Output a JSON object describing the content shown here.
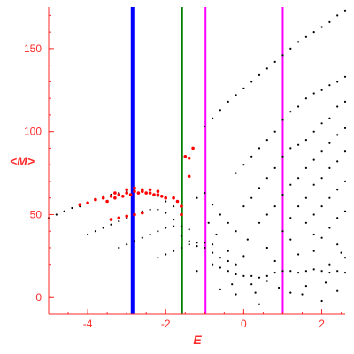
{
  "chart_data": {
    "type": "scatter",
    "xlabel": "E",
    "ylabel": "<M>",
    "xlim": [
      -5,
      2.6
    ],
    "ylim": [
      -10,
      175
    ],
    "x_ticks": [
      -4,
      -2,
      0,
      2
    ],
    "y_ticks": [
      0,
      50,
      100,
      150
    ],
    "x_tick_labels": [
      "-4",
      "-2",
      "0",
      "2"
    ],
    "y_tick_labels": [
      "0",
      "50",
      "100",
      "150"
    ],
    "grid": false,
    "legend": "none",
    "colors": {
      "axis": "#ff2a2a",
      "black_points": "#000000",
      "red_points": "#ff0000",
      "blue_line": "#0000ff",
      "green_line": "#008000",
      "magenta_line": "#ff00ff"
    },
    "vertical_lines": [
      {
        "x": -2.85,
        "color": "#0000ff",
        "width": "thick"
      },
      {
        "x": -1.58,
        "color": "#008000",
        "width": "normal"
      },
      {
        "x": -0.98,
        "color": "#ff00ff",
        "width": "normal"
      },
      {
        "x": 1.0,
        "color": "#ff00ff",
        "width": "normal"
      }
    ],
    "series": [
      {
        "color": "#000000",
        "points": [
          [
            -5.0,
            48
          ],
          [
            -4.8,
            50
          ],
          [
            -4.6,
            52
          ],
          [
            -4.4,
            54
          ],
          [
            -4.2,
            55
          ],
          [
            -4.0,
            57
          ],
          [
            -3.8,
            59
          ],
          [
            -3.6,
            61
          ],
          [
            -3.4,
            62
          ],
          [
            -3.2,
            63
          ],
          [
            -3.0,
            64
          ],
          [
            -2.8,
            64
          ],
          [
            -2.6,
            64
          ],
          [
            -2.4,
            63
          ],
          [
            -2.2,
            61
          ],
          [
            -2.0,
            58
          ],
          [
            -1.8,
            55
          ],
          [
            -4.0,
            38
          ],
          [
            -3.8,
            40
          ],
          [
            -3.6,
            42
          ],
          [
            -3.4,
            44
          ],
          [
            -3.2,
            46
          ],
          [
            -3.0,
            48
          ],
          [
            -2.8,
            50
          ],
          [
            -2.6,
            52
          ],
          [
            -2.4,
            53
          ],
          [
            -2.2,
            53
          ],
          [
            -2.0,
            51
          ],
          [
            -1.8,
            47
          ],
          [
            -3.2,
            30
          ],
          [
            -3.0,
            32
          ],
          [
            -2.8,
            34
          ],
          [
            -2.6,
            36
          ],
          [
            -2.4,
            38
          ],
          [
            -2.2,
            40
          ],
          [
            -2.0,
            42
          ],
          [
            -1.8,
            43
          ],
          [
            -1.6,
            43
          ],
          [
            -1.4,
            41
          ],
          [
            -2.2,
            24
          ],
          [
            -2.0,
            26
          ],
          [
            -1.8,
            28
          ],
          [
            -1.6,
            30
          ],
          [
            -1.4,
            32
          ],
          [
            -1.2,
            33
          ],
          [
            -1.0,
            33
          ],
          [
            -0.8,
            32
          ],
          [
            -1.2,
            60
          ],
          [
            -1.0,
            63
          ],
          [
            -0.8,
            56
          ],
          [
            -0.6,
            50
          ],
          [
            -0.4,
            45
          ],
          [
            -0.2,
            40
          ],
          [
            -1.6,
            37
          ],
          [
            -1.4,
            34
          ],
          [
            -1.2,
            31
          ],
          [
            -1.0,
            30
          ],
          [
            -0.8,
            27
          ],
          [
            -0.6,
            24
          ],
          [
            -0.4,
            22
          ],
          [
            -0.2,
            20
          ],
          [
            -1.0,
            103
          ],
          [
            -0.8,
            108
          ],
          [
            -0.6,
            113
          ],
          [
            -0.4,
            118
          ],
          [
            -0.2,
            122
          ],
          [
            0.0,
            126
          ],
          [
            0.2,
            130
          ],
          [
            0.4,
            134
          ],
          [
            0.6,
            138
          ],
          [
            0.8,
            142
          ],
          [
            1.0,
            146
          ],
          [
            1.2,
            150
          ],
          [
            1.4,
            154
          ],
          [
            1.6,
            157
          ],
          [
            1.8,
            160
          ],
          [
            2.0,
            163
          ],
          [
            2.2,
            166
          ],
          [
            2.4,
            170
          ],
          [
            2.6,
            173
          ],
          [
            -0.2,
            75
          ],
          [
            0.0,
            80
          ],
          [
            0.2,
            85
          ],
          [
            0.4,
            90
          ],
          [
            0.6,
            95
          ],
          [
            0.8,
            100
          ],
          [
            1.0,
            107
          ],
          [
            1.2,
            112
          ],
          [
            1.4,
            115
          ],
          [
            1.6,
            120
          ],
          [
            1.8,
            123
          ],
          [
            2.0,
            125
          ],
          [
            2.2,
            128
          ],
          [
            2.4,
            130
          ],
          [
            2.6,
            133
          ],
          [
            0.0,
            55
          ],
          [
            0.2,
            60
          ],
          [
            0.4,
            66
          ],
          [
            0.6,
            72
          ],
          [
            0.8,
            78
          ],
          [
            1.0,
            85
          ],
          [
            1.2,
            90
          ],
          [
            1.4,
            92
          ],
          [
            1.6,
            95
          ],
          [
            1.8,
            100
          ],
          [
            2.0,
            105
          ],
          [
            2.2,
            108
          ],
          [
            2.4,
            115
          ],
          [
            2.6,
            118
          ],
          [
            0.4,
            45
          ],
          [
            0.6,
            50
          ],
          [
            0.8,
            55
          ],
          [
            1.0,
            62
          ],
          [
            1.2,
            68
          ],
          [
            1.4,
            72
          ],
          [
            1.6,
            78
          ],
          [
            1.8,
            83
          ],
          [
            2.0,
            88
          ],
          [
            2.2,
            93
          ],
          [
            2.4,
            98
          ],
          [
            2.6,
            102
          ],
          [
            1.0,
            40
          ],
          [
            1.2,
            48
          ],
          [
            1.4,
            55
          ],
          [
            1.6,
            60
          ],
          [
            1.8,
            68
          ],
          [
            2.0,
            72
          ],
          [
            2.2,
            78
          ],
          [
            2.4,
            82
          ],
          [
            2.6,
            88
          ],
          [
            1.6,
            45
          ],
          [
            1.8,
            50
          ],
          [
            2.0,
            55
          ],
          [
            2.2,
            60
          ],
          [
            2.4,
            65
          ],
          [
            2.6,
            70
          ],
          [
            2.0,
            36
          ],
          [
            2.2,
            42
          ],
          [
            2.4,
            48
          ],
          [
            2.6,
            52
          ],
          [
            -0.8,
            20
          ],
          [
            -0.6,
            18
          ],
          [
            -0.4,
            16
          ],
          [
            -0.2,
            14
          ],
          [
            0.0,
            13
          ],
          [
            0.2,
            13
          ],
          [
            0.4,
            12
          ],
          [
            0.6,
            13
          ],
          [
            0.8,
            15
          ],
          [
            1.0,
            16
          ],
          [
            1.2,
            16
          ],
          [
            1.4,
            15
          ],
          [
            1.6,
            16
          ],
          [
            1.8,
            17
          ],
          [
            2.0,
            16
          ],
          [
            2.2,
            15
          ],
          [
            2.4,
            16
          ],
          [
            2.6,
            15
          ],
          [
            -0.6,
            5
          ],
          [
            -0.2,
            2
          ],
          [
            0.2,
            8
          ],
          [
            0.4,
            -4
          ],
          [
            0.6,
            10
          ],
          [
            0.8,
            22
          ],
          [
            1.2,
            3
          ],
          [
            1.4,
            26
          ],
          [
            1.6,
            7
          ],
          [
            1.8,
            28
          ],
          [
            2.0,
            -2
          ],
          [
            2.2,
            20
          ],
          [
            2.4,
            4
          ],
          [
            2.6,
            24
          ],
          [
            -0.4,
            28
          ],
          [
            0.0,
            25
          ],
          [
            0.6,
            30
          ],
          [
            1.2,
            35
          ],
          [
            1.8,
            38
          ],
          [
            2.4,
            32
          ],
          [
            -0.9,
            45
          ],
          [
            -0.7,
            38
          ],
          [
            0.1,
            35
          ],
          [
            0.9,
            6
          ],
          [
            1.5,
            2
          ],
          [
            2.1,
            9
          ],
          [
            2.5,
            27
          ],
          [
            0.3,
            3
          ],
          [
            -1.2,
            16
          ],
          [
            -0.3,
            8
          ]
        ]
      },
      {
        "color": "#ff0000",
        "points": [
          [
            -4.2,
            56
          ],
          [
            -4.0,
            57
          ],
          [
            -3.8,
            59
          ],
          [
            -3.6,
            60
          ],
          [
            -3.4,
            61
          ],
          [
            -3.2,
            62
          ],
          [
            -3.0,
            63
          ],
          [
            -2.8,
            64
          ],
          [
            -2.6,
            64
          ],
          [
            -2.4,
            63
          ],
          [
            -2.2,
            62
          ],
          [
            -2.0,
            60
          ],
          [
            -3.5,
            58
          ],
          [
            -3.3,
            60
          ],
          [
            -3.1,
            61
          ],
          [
            -2.9,
            62
          ],
          [
            -2.7,
            63
          ],
          [
            -2.5,
            63
          ],
          [
            -2.3,
            62
          ],
          [
            -2.1,
            61
          ],
          [
            -3.3,
            63
          ],
          [
            -3.0,
            65
          ],
          [
            -2.8,
            66
          ],
          [
            -2.6,
            65
          ],
          [
            -2.4,
            65
          ],
          [
            -2.2,
            64
          ],
          [
            -3.4,
            47
          ],
          [
            -3.2,
            48
          ],
          [
            -3.0,
            49
          ],
          [
            -2.8,
            50
          ],
          [
            -2.6,
            51
          ],
          [
            -1.8,
            60
          ],
          [
            -1.7,
            58
          ],
          [
            -1.6,
            55
          ],
          [
            -1.5,
            85
          ],
          [
            -1.4,
            84
          ],
          [
            -1.4,
            73
          ],
          [
            -1.3,
            90
          ],
          [
            -1.6,
            50
          ]
        ]
      }
    ]
  }
}
